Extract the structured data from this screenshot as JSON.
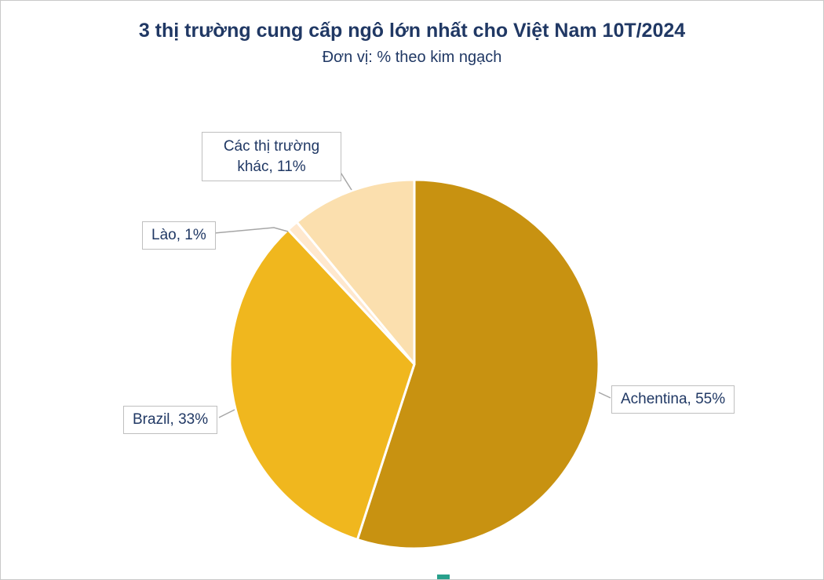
{
  "header": {
    "title": "3 thị trường cung cấp ngô lớn nhất cho Việt Nam 10T/2024",
    "subtitle": "Đơn vị: % theo kim ngạch",
    "title_color": "#203864"
  },
  "chart_data": {
    "type": "pie",
    "title": "3 thị trường cung cấp ngô lớn nhất cho Việt Nam 10T/2024",
    "subtitle": "Đơn vị: % theo kim ngạch",
    "unit": "% theo kim ngạch",
    "start_angle_deg": 0,
    "direction": "clockwise",
    "slices": [
      {
        "label": "Achentina",
        "value": 55,
        "color": "#c89211",
        "callout": "Achentina, 55%"
      },
      {
        "label": "Brazil",
        "value": 33,
        "color": "#f0b71e",
        "callout": "Brazil, 33%"
      },
      {
        "label": "Lào",
        "value": 1,
        "color": "#ffe8ce",
        "callout": "Lào, 1%"
      },
      {
        "label": "Các thị trường khác",
        "value": 11,
        "color": "#fbdfae",
        "callout": "Các thị trường khác, 11%"
      }
    ],
    "slice_border_color": "#ffffff",
    "leader_line_color": "#a6a6a6",
    "label_box": {
      "bg": "#ffffff",
      "border": "#bfbfbf",
      "text_color": "#203864"
    },
    "legend": "none",
    "data_labels": "callout boxes with leader lines"
  }
}
